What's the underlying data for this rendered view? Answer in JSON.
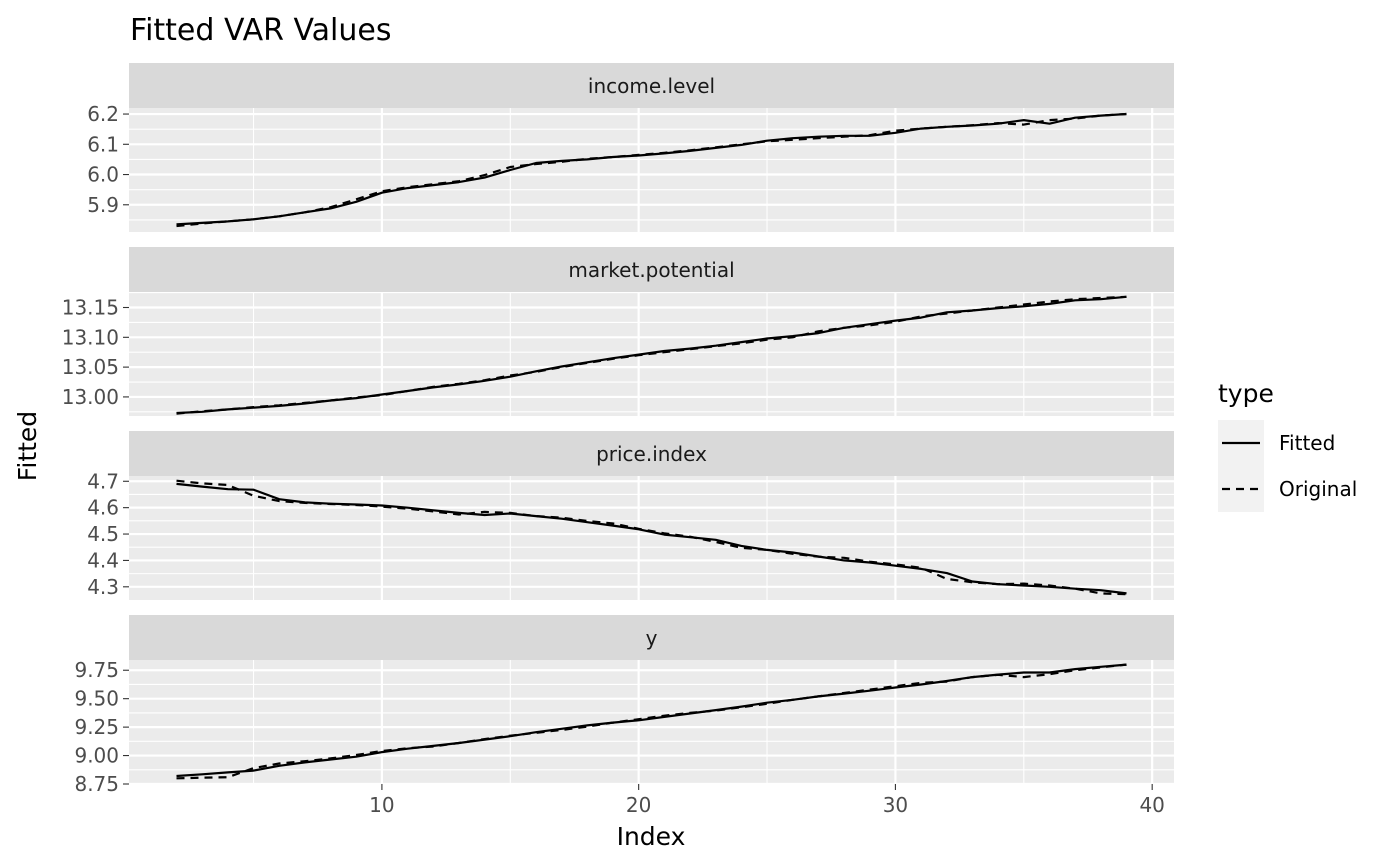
{
  "title": "Fitted VAR Values",
  "xlabel": "Index",
  "ylabel": "Fitted",
  "legend": {
    "title": "type",
    "items": [
      {
        "label": "Fitted",
        "dash": "solid"
      },
      {
        "label": "Original",
        "dash": "dashed"
      }
    ]
  },
  "colors": {
    "panel_bg": "#ebebeb",
    "strip_bg": "#d9d9d9",
    "grid": "#ffffff",
    "line": "#000000"
  },
  "chart_data": {
    "type": "line",
    "x": [
      2,
      3,
      4,
      5,
      6,
      7,
      8,
      9,
      10,
      11,
      12,
      13,
      14,
      15,
      16,
      17,
      18,
      19,
      20,
      21,
      22,
      23,
      24,
      25,
      26,
      27,
      28,
      29,
      30,
      31,
      32,
      33,
      34,
      35,
      36,
      37,
      38,
      39
    ],
    "xlim": [
      0.15,
      40.85
    ],
    "xticks": [
      10,
      20,
      30,
      40
    ],
    "xtick_labels": [
      "10",
      "20",
      "30",
      "40"
    ],
    "grid": true,
    "legend_position": "right",
    "panels": [
      {
        "label": "income.level",
        "ylim": [
          5.81,
          6.22
        ],
        "yticks": [
          5.9,
          6.0,
          6.1,
          6.2
        ],
        "ytick_labels": [
          "5.9",
          "6.0",
          "6.1",
          "6.2"
        ],
        "series": [
          {
            "name": "Fitted",
            "values": [
              5.835,
              5.84,
              5.845,
              5.852,
              5.862,
              5.875,
              5.888,
              5.91,
              5.94,
              5.955,
              5.965,
              5.975,
              5.99,
              6.015,
              6.038,
              6.045,
              6.05,
              6.058,
              6.063,
              6.07,
              6.078,
              6.088,
              6.098,
              6.112,
              6.12,
              6.125,
              6.128,
              6.128,
              6.138,
              6.152,
              6.158,
              6.162,
              6.168,
              6.18,
              6.168,
              6.188,
              6.195,
              6.2
            ]
          },
          {
            "name": "Original",
            "values": [
              5.83,
              5.838,
              5.845,
              5.852,
              5.862,
              5.875,
              5.892,
              5.918,
              5.945,
              5.958,
              5.968,
              5.978,
              5.998,
              6.025,
              6.035,
              6.042,
              6.052,
              6.058,
              6.065,
              6.072,
              6.08,
              6.09,
              6.1,
              6.11,
              6.115,
              6.12,
              6.125,
              6.13,
              6.145,
              6.152,
              6.158,
              6.163,
              6.17,
              6.165,
              6.18,
              6.185,
              6.195,
              6.2
            ]
          }
        ]
      },
      {
        "label": "market.potential",
        "ylim": [
          12.968,
          13.176
        ],
        "yticks": [
          13.0,
          13.05,
          13.1,
          13.15
        ],
        "ytick_labels": [
          "13.00",
          "13.05",
          "13.10",
          "13.15"
        ],
        "series": [
          {
            "name": "Fitted",
            "values": [
              12.973,
              12.975,
              12.979,
              12.982,
              12.985,
              12.989,
              12.994,
              12.998,
              13.004,
              13.01,
              13.016,
              13.021,
              13.027,
              13.034,
              13.043,
              13.051,
              13.058,
              13.065,
              13.071,
              13.077,
              13.081,
              13.086,
              13.092,
              13.098,
              13.102,
              13.107,
              13.116,
              13.122,
              13.128,
              13.133,
              13.142,
              13.145,
              13.149,
              13.152,
              13.156,
              13.162,
              13.164,
              13.168
            ]
          },
          {
            "name": "Original",
            "values": [
              12.972,
              12.976,
              12.979,
              12.983,
              12.986,
              12.99,
              12.994,
              12.999,
              13.003,
              13.01,
              13.017,
              13.022,
              13.028,
              13.036,
              13.042,
              13.05,
              13.057,
              13.064,
              13.07,
              13.075,
              13.08,
              13.085,
              13.09,
              13.096,
              13.1,
              13.11,
              13.116,
              13.12,
              13.126,
              13.135,
              13.14,
              13.145,
              13.15,
              13.155,
              13.16,
              13.164,
              13.166,
              13.168
            ]
          }
        ]
      },
      {
        "label": "price.index",
        "ylim": [
          4.25,
          4.72
        ],
        "yticks": [
          4.3,
          4.4,
          4.5,
          4.6,
          4.7
        ],
        "ytick_labels": [
          "4.3",
          "4.4",
          "4.5",
          "4.6",
          "4.7"
        ],
        "series": [
          {
            "name": "Fitted",
            "values": [
              4.69,
              4.68,
              4.67,
              4.668,
              4.632,
              4.62,
              4.615,
              4.612,
              4.608,
              4.6,
              4.59,
              4.58,
              4.572,
              4.578,
              4.568,
              4.558,
              4.545,
              4.532,
              4.518,
              4.498,
              4.488,
              4.478,
              4.455,
              4.44,
              4.43,
              4.415,
              4.4,
              4.392,
              4.38,
              4.368,
              4.352,
              4.32,
              4.31,
              4.305,
              4.3,
              4.293,
              4.287,
              4.275
            ]
          },
          {
            "name": "Original",
            "values": [
              4.702,
              4.692,
              4.686,
              4.645,
              4.625,
              4.618,
              4.614,
              4.61,
              4.604,
              4.596,
              4.586,
              4.574,
              4.584,
              4.58,
              4.568,
              4.562,
              4.55,
              4.54,
              4.52,
              4.503,
              4.49,
              4.47,
              4.448,
              4.44,
              4.425,
              4.414,
              4.41,
              4.395,
              4.385,
              4.372,
              4.33,
              4.317,
              4.31,
              4.312,
              4.305,
              4.293,
              4.275,
              4.272
            ]
          }
        ]
      },
      {
        "label": "y",
        "ylim": [
          8.75,
          9.84
        ],
        "yticks": [
          8.75,
          9.0,
          9.25,
          9.5,
          9.75
        ],
        "ytick_labels": [
          "8.75",
          "9.00",
          "9.25",
          "9.50",
          "9.75"
        ],
        "series": [
          {
            "name": "Fitted",
            "values": [
              8.82,
              8.835,
              8.852,
              8.868,
              8.91,
              8.94,
              8.965,
              8.99,
              9.03,
              9.06,
              9.085,
              9.11,
              9.14,
              9.17,
              9.205,
              9.235,
              9.265,
              9.29,
              9.31,
              9.34,
              9.37,
              9.4,
              9.43,
              9.465,
              9.49,
              9.52,
              9.545,
              9.57,
              9.598,
              9.625,
              9.655,
              9.69,
              9.712,
              9.73,
              9.73,
              9.76,
              9.78,
              9.8
            ]
          },
          {
            "name": "Original",
            "values": [
              8.8,
              8.805,
              8.81,
              8.89,
              8.93,
              8.95,
              8.975,
              9.005,
              9.04,
              9.065,
              9.08,
              9.11,
              9.145,
              9.175,
              9.2,
              9.225,
              9.255,
              9.29,
              9.32,
              9.35,
              9.375,
              9.395,
              9.425,
              9.455,
              9.49,
              9.52,
              9.55,
              9.58,
              9.61,
              9.64,
              9.65,
              9.69,
              9.71,
              9.69,
              9.715,
              9.75,
              9.775,
              9.8
            ]
          }
        ]
      }
    ]
  }
}
